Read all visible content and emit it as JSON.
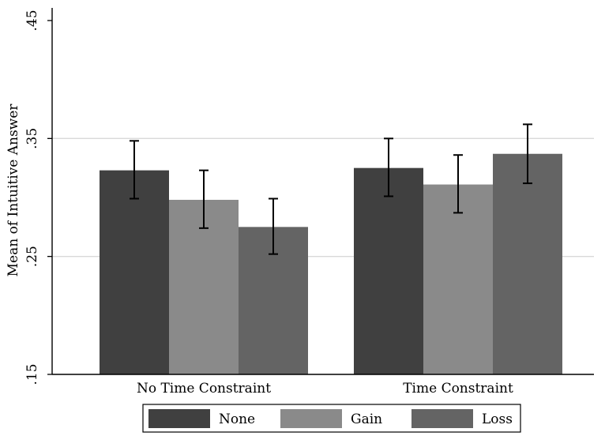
{
  "chart_data": {
    "type": "bar",
    "title": "",
    "xlabel": "",
    "ylabel": "Mean of Intuitive Answer",
    "ylim": [
      0.15,
      0.45
    ],
    "yticks": [
      0.15,
      0.25,
      0.35,
      0.45
    ],
    "ytick_labels": [
      ".15",
      ".25",
      ".35",
      ".45"
    ],
    "gridlines_y": [
      0.25,
      0.35
    ],
    "grid": true,
    "legend_position": "bottom",
    "categories": [
      "No Time Constraint",
      "Time Constraint"
    ],
    "series": [
      {
        "name": "None",
        "color": "#404040",
        "values": [
          0.323,
          0.325
        ],
        "ci_low": [
          0.299,
          0.301
        ],
        "ci_high": [
          0.348,
          0.35
        ]
      },
      {
        "name": "Gain",
        "color": "#8a8a8a",
        "values": [
          0.298,
          0.311
        ],
        "ci_low": [
          0.274,
          0.287
        ],
        "ci_high": [
          0.323,
          0.336
        ]
      },
      {
        "name": "Loss",
        "color": "#646464",
        "values": [
          0.275,
          0.337
        ],
        "ci_low": [
          0.252,
          0.312
        ],
        "ci_high": [
          0.299,
          0.362
        ]
      }
    ]
  }
}
